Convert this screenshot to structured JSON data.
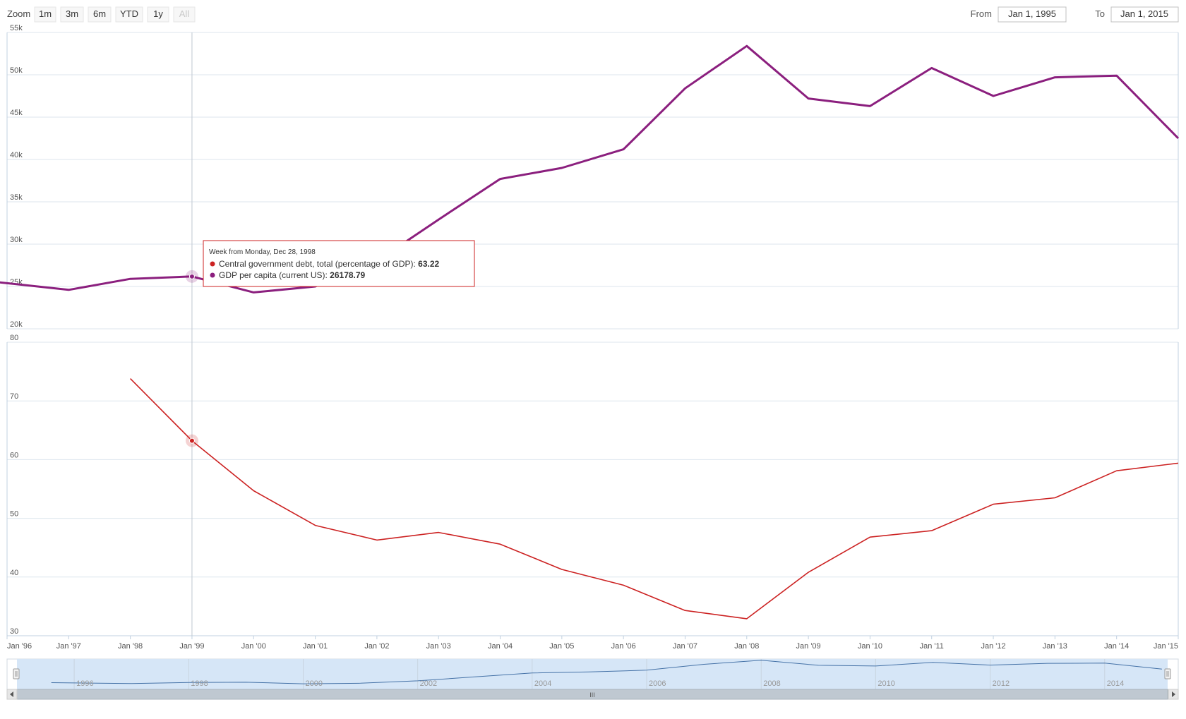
{
  "rangeSelector": {
    "zoom_label": "Zoom",
    "buttons": [
      {
        "label": "1m",
        "enabled": true
      },
      {
        "label": "3m",
        "enabled": true
      },
      {
        "label": "6m",
        "enabled": true
      },
      {
        "label": "YTD",
        "enabled": true
      },
      {
        "label": "1y",
        "enabled": true
      },
      {
        "label": "All",
        "enabled": false
      }
    ],
    "from_label": "From",
    "from_value": "Jan 1, 1995",
    "to_label": "To",
    "to_value": "Jan 1, 2015"
  },
  "tooltip": {
    "header": "Week from Monday, Dec 28, 1998",
    "rows": [
      {
        "label": "Central government debt, total (percentage of GDP): ",
        "value": "63.22",
        "color": "#cc2222"
      },
      {
        "label": "GDP per capita (current US): ",
        "value": "26178.79",
        "color": "#8b1f7e"
      }
    ]
  },
  "navigator": {
    "ticks": [
      "1996",
      "1998",
      "2000",
      "2002",
      "2004",
      "2006",
      "2008",
      "2010",
      "2012",
      "2014"
    ],
    "scroll_grip": "III"
  },
  "colors": {
    "gdp": "#8b1f7e",
    "debt": "#cc2222",
    "grid": "#dde6ee",
    "navigator_fill": "#d6e6f7",
    "navigator_line": "#4572a7"
  },
  "chart_data": {
    "type": "line",
    "x_ticks": [
      "Jan '96",
      "Jan '97",
      "Jan '98",
      "Jan '99",
      "Jan '00",
      "Jan '01",
      "Jan '02",
      "Jan '03",
      "Jan '04",
      "Jan '05",
      "Jan '06",
      "Jan '07",
      "Jan '08",
      "Jan '09",
      "Jan '10",
      "Jan '11",
      "Jan '12",
      "Jan '13",
      "Jan '14",
      "Jan '15"
    ],
    "x_range": [
      1996,
      2015
    ],
    "panels": [
      {
        "y_ticks": [
          "20k",
          "25k",
          "30k",
          "35k",
          "40k",
          "45k",
          "50k",
          "55k"
        ],
        "ylim": [
          20000,
          55000
        ],
        "series": [
          {
            "name": "GDP per capita (current US)",
            "x": [
              1995.6,
              1997,
              1998,
              1999,
              2000,
              2001,
              2002,
              2003,
              2004,
              2005,
              2006,
              2007,
              2008,
              2009,
              2010,
              2011,
              2012,
              2013,
              2014,
              2015
            ],
            "values": [
              25700,
              24600,
              25900,
              26180,
              24300,
              25000,
              28000,
              32900,
              37700,
              39000,
              41200,
              48400,
              53400,
              47200,
              46300,
              50800,
              47500,
              49700,
              49900,
              42500
            ]
          }
        ]
      },
      {
        "y_ticks": [
          "30",
          "40",
          "50",
          "60",
          "70",
          "80"
        ],
        "ylim": [
          30,
          80
        ],
        "series": [
          {
            "name": "Central government debt, total (percentage of GDP)",
            "x": [
              1998,
              1999,
              2000,
              2001,
              2002,
              2003,
              2004,
              2005,
              2006,
              2007,
              2008,
              2009,
              2010,
              2011,
              2012,
              2013,
              2014,
              2015
            ],
            "values": [
              73.8,
              63.22,
              54.7,
              48.8,
              46.3,
              47.6,
              45.6,
              41.3,
              38.6,
              34.3,
              32.9,
              40.8,
              46.8,
              47.9,
              52.4,
              53.5,
              58.1,
              59.4
            ]
          }
        ]
      }
    ],
    "hover_x": 1999
  }
}
